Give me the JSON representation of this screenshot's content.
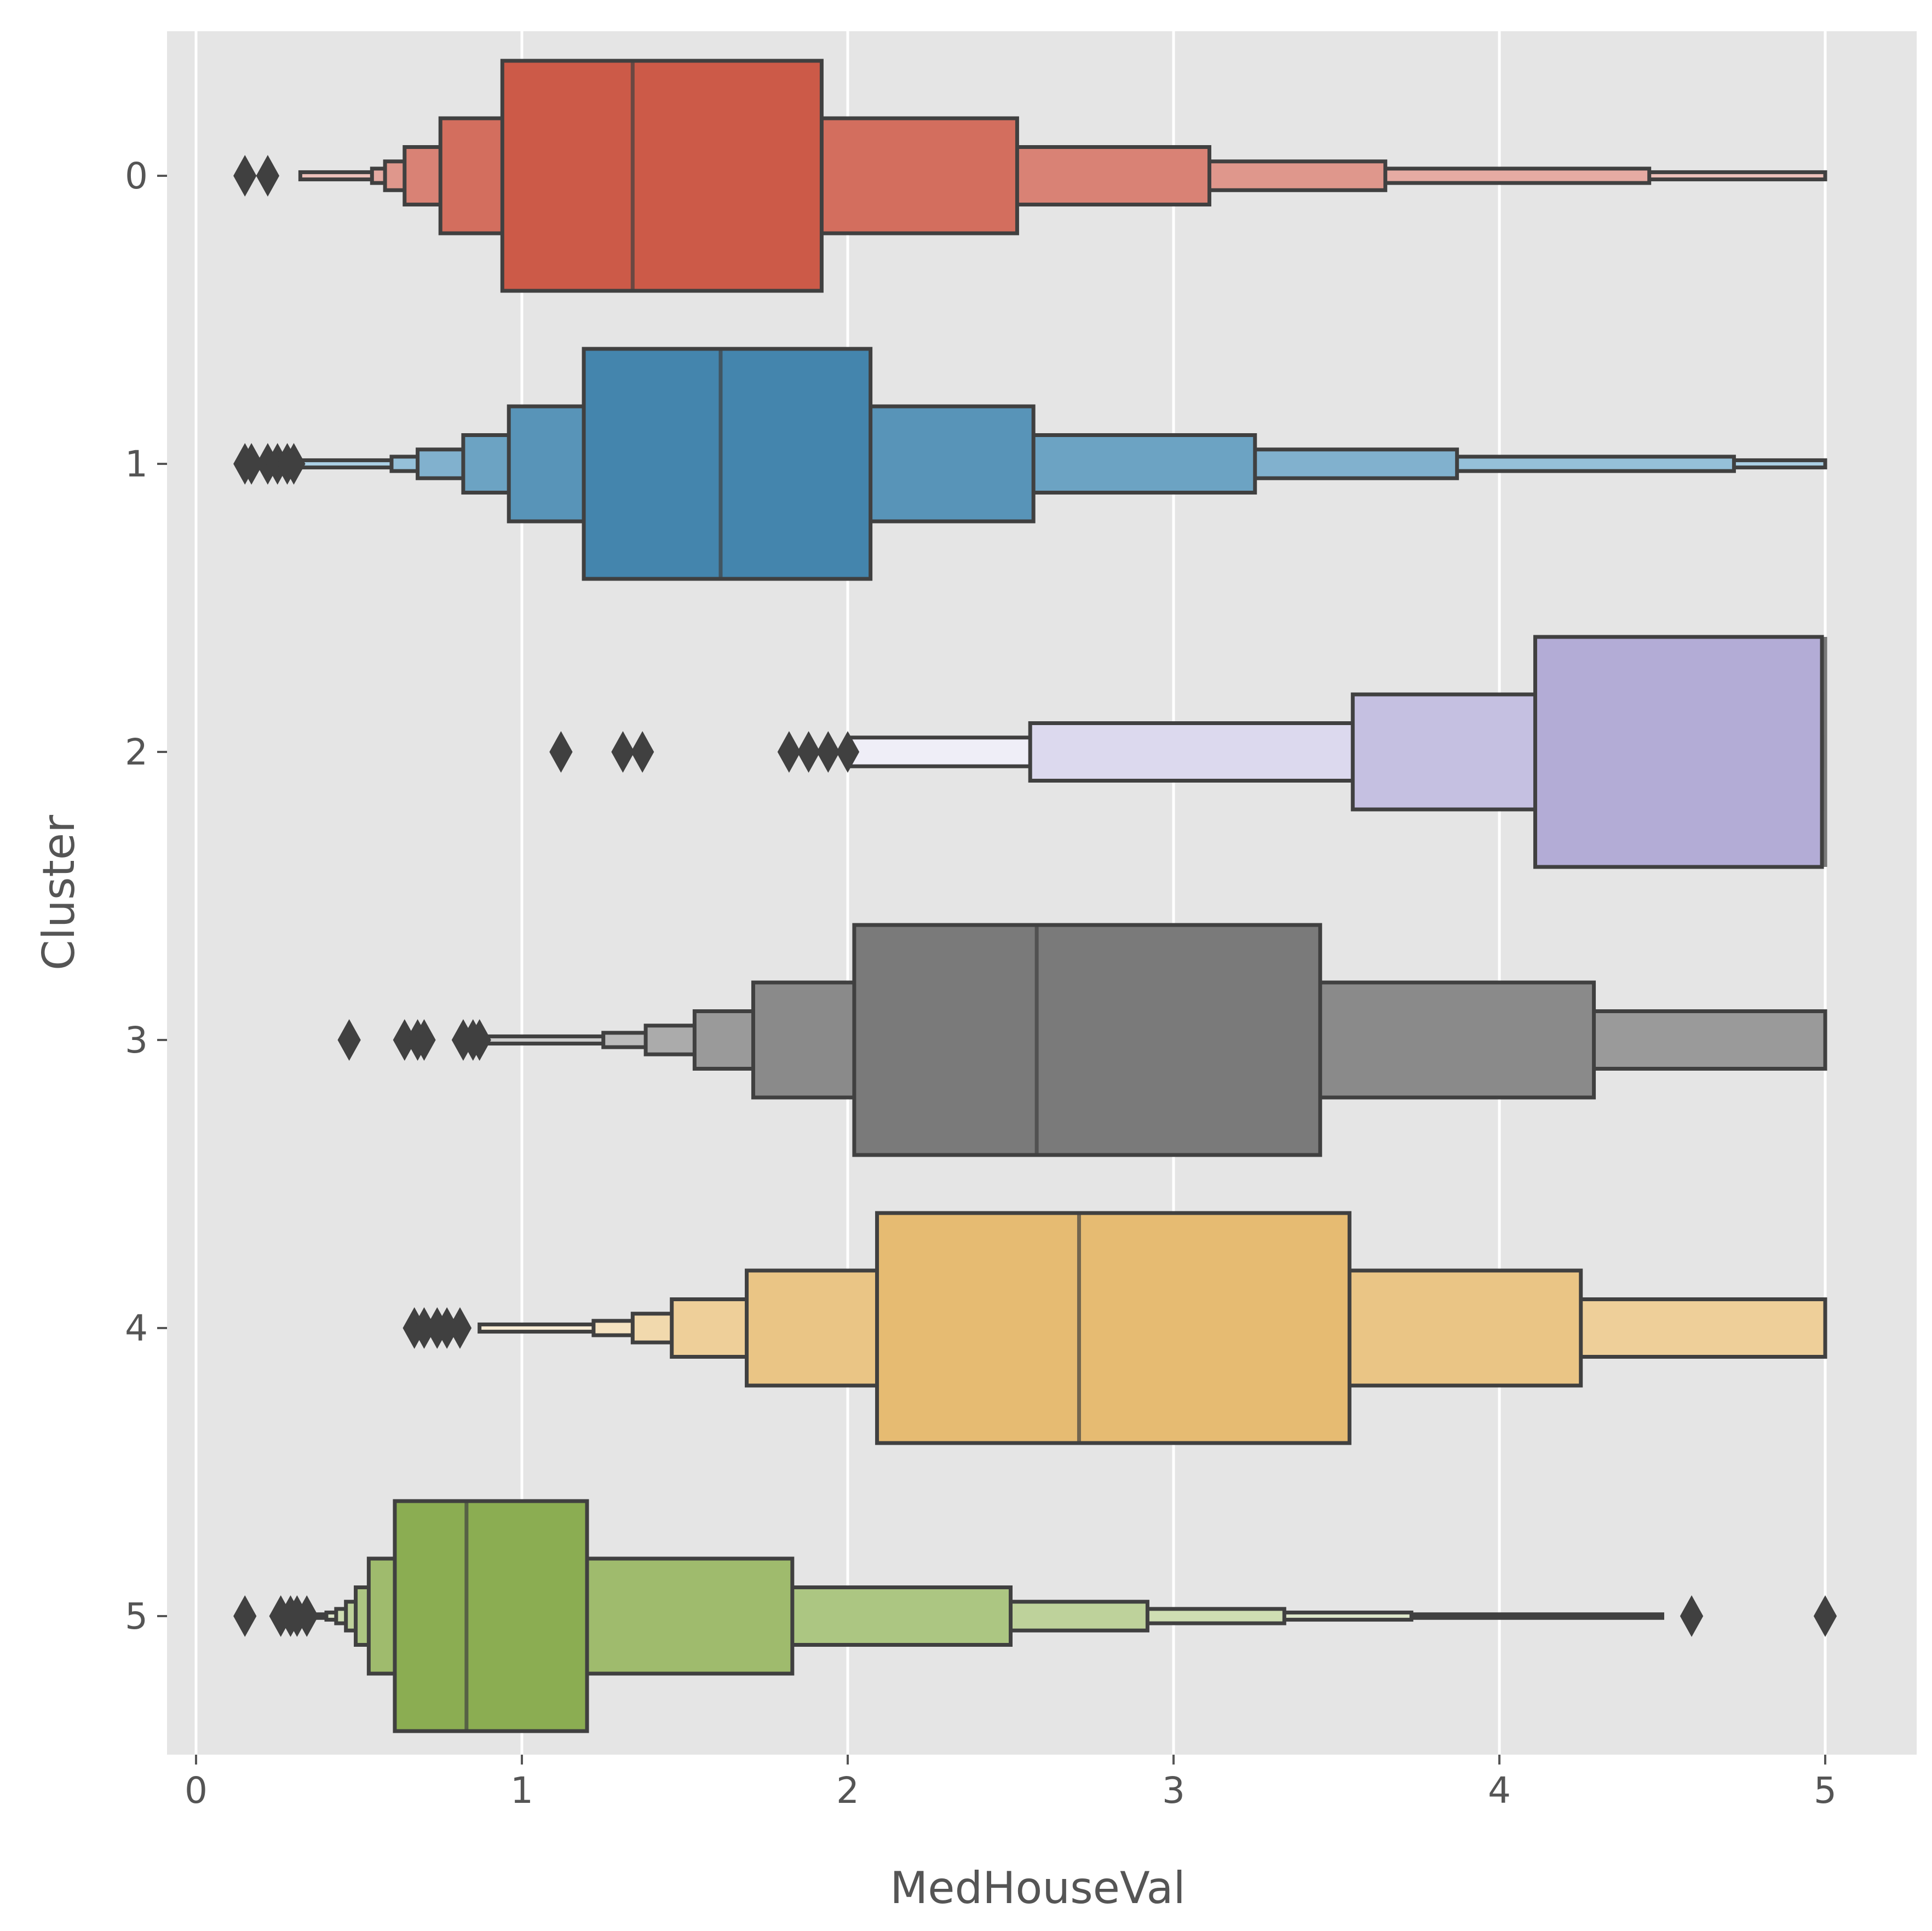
{
  "chart_data": {
    "type": "boxen",
    "orientation": "horizontal",
    "xlabel": "MedHouseVal",
    "ylabel": "Cluster",
    "xlim": [
      -0.09,
      5.12
    ],
    "xticks": [
      0,
      1,
      2,
      3,
      4,
      5
    ],
    "grid": true,
    "background": "#e5e5e5",
    "edge_color": "#404040",
    "categories": [
      "0",
      "1",
      "2",
      "3",
      "4",
      "5"
    ],
    "series": [
      {
        "category": "0",
        "color": "#cc5a48",
        "median": 1.34,
        "levels": [
          {
            "lo": 0.94,
            "hi": 1.92,
            "color": "#cc5a48"
          },
          {
            "lo": 0.75,
            "hi": 2.52,
            "color": "#d36e5e"
          },
          {
            "lo": 0.64,
            "hi": 3.11,
            "color": "#d98275"
          },
          {
            "lo": 0.58,
            "hi": 3.65,
            "color": "#df978c"
          },
          {
            "lo": 0.54,
            "hi": 4.46,
            "color": "#e6aba3"
          },
          {
            "lo": 0.32,
            "hi": 5.0,
            "color": "#ecc0b9"
          }
        ],
        "outliers": [
          0.15,
          0.22
        ]
      },
      {
        "category": "1",
        "color": "#4485ad",
        "median": 1.61,
        "levels": [
          {
            "lo": 1.19,
            "hi": 2.07,
            "color": "#4485ad"
          },
          {
            "lo": 0.96,
            "hi": 2.57,
            "color": "#5894b8"
          },
          {
            "lo": 0.82,
            "hi": 3.25,
            "color": "#6ca3c3"
          },
          {
            "lo": 0.68,
            "hi": 3.87,
            "color": "#81b1ce"
          },
          {
            "lo": 0.6,
            "hi": 4.72,
            "color": "#95c0d9"
          },
          {
            "lo": 0.3,
            "hi": 5.0,
            "color": "#aacfe4"
          }
        ],
        "outliers": [
          0.15,
          0.17,
          0.22,
          0.25,
          0.28,
          0.3
        ]
      },
      {
        "category": "2",
        "color": "#b3acd6",
        "median": 5.0,
        "levels": [
          {
            "lo": 4.11,
            "hi": 4.99,
            "color": "#b3acd6"
          },
          {
            "lo": 3.55,
            "hi": 4.99,
            "color": "#c5c0e1"
          },
          {
            "lo": 2.56,
            "hi": 4.99,
            "color": "#dcd9ee"
          },
          {
            "lo": 2.0,
            "hi": 4.99,
            "color": "#efeef7"
          }
        ],
        "outliers": [
          1.12,
          1.31,
          1.37,
          1.82,
          1.88,
          1.94,
          2.0
        ]
      },
      {
        "category": "3",
        "color": "#7a7a7a",
        "median": 2.58,
        "levels": [
          {
            "lo": 2.02,
            "hi": 3.45,
            "color": "#7a7a7a"
          },
          {
            "lo": 1.71,
            "hi": 4.29,
            "color": "#8a8a8a"
          },
          {
            "lo": 1.53,
            "hi": 5.0,
            "color": "#9a9a9a"
          },
          {
            "lo": 1.38,
            "hi": 5.0,
            "color": "#ababab"
          },
          {
            "lo": 1.25,
            "hi": 5.0,
            "color": "#bbbbbb"
          },
          {
            "lo": 0.88,
            "hi": 5.0,
            "color": "#cccccc"
          }
        ],
        "outliers": [
          0.47,
          0.64,
          0.68,
          0.7,
          0.82,
          0.85,
          0.87
        ]
      },
      {
        "category": "4",
        "color": "#e6bb72",
        "median": 2.71,
        "levels": [
          {
            "lo": 2.09,
            "hi": 3.54,
            "color": "#e6bb72"
          },
          {
            "lo": 1.69,
            "hi": 4.25,
            "color": "#eac585"
          },
          {
            "lo": 1.46,
            "hi": 5.0,
            "color": "#eecf99"
          },
          {
            "lo": 1.34,
            "hi": 5.0,
            "color": "#f1d9ad"
          },
          {
            "lo": 1.22,
            "hi": 5.0,
            "color": "#f5e3c1"
          },
          {
            "lo": 0.87,
            "hi": 5.0,
            "color": "#f9edd6"
          }
        ],
        "outliers": [
          0.67,
          0.7,
          0.74,
          0.77,
          0.81
        ]
      },
      {
        "category": "5",
        "color": "#8bad52",
        "median": 0.83,
        "levels": [
          {
            "lo": 0.61,
            "hi": 1.2,
            "color": "#8bad52"
          },
          {
            "lo": 0.53,
            "hi": 1.83,
            "color": "#9fbb6d"
          },
          {
            "lo": 0.49,
            "hi": 2.5,
            "color": "#acc682"
          },
          {
            "lo": 0.46,
            "hi": 2.92,
            "color": "#bed29b"
          },
          {
            "lo": 0.43,
            "hi": 3.34,
            "color": "#cfdeb3"
          },
          {
            "lo": 0.4,
            "hi": 3.73,
            "color": "#dde7ca"
          },
          {
            "lo": 0.37,
            "hi": 4.5,
            "color": "#eaf0dd"
          }
        ],
        "outliers": [
          0.15,
          0.26,
          0.29,
          0.31,
          0.34,
          4.59,
          5.0
        ]
      }
    ]
  }
}
